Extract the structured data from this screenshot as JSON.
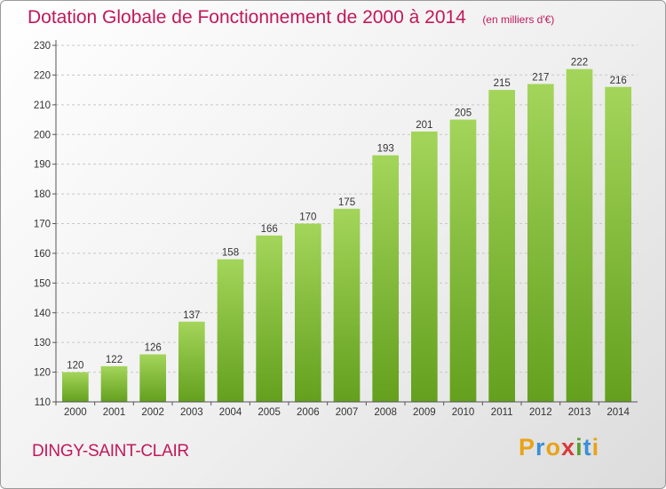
{
  "title": "Dotation Globale de Fonctionnement de 2000 à 2014",
  "unit": "(en milliers d'€)",
  "commune": "DINGY-SAINT-CLAIR",
  "logo": {
    "letters": [
      "P",
      "r",
      "o",
      "x",
      "i",
      "t",
      "i"
    ],
    "colors": [
      "#e8a317",
      "#3a8fd8",
      "#e8a317",
      "#d83a3a",
      "#5aa02c",
      "#3a8fd8",
      "#e8a317"
    ]
  },
  "colors": {
    "accent": "#c1185a",
    "bar_top": "#a3d55a",
    "bar_bottom": "#64a01e"
  },
  "chart_data": {
    "type": "bar",
    "categories": [
      "2000",
      "2001",
      "2002",
      "2003",
      "2004",
      "2005",
      "2006",
      "2007",
      "2008",
      "2009",
      "2010",
      "2011",
      "2012",
      "2013",
      "2014"
    ],
    "values": [
      120,
      122,
      126,
      137,
      158,
      166,
      170,
      175,
      193,
      201,
      205,
      215,
      217,
      222,
      216
    ],
    "ylim": [
      110,
      230
    ],
    "yticks": [
      110,
      120,
      130,
      140,
      150,
      160,
      170,
      180,
      190,
      200,
      210,
      220,
      230
    ],
    "grid": true
  }
}
